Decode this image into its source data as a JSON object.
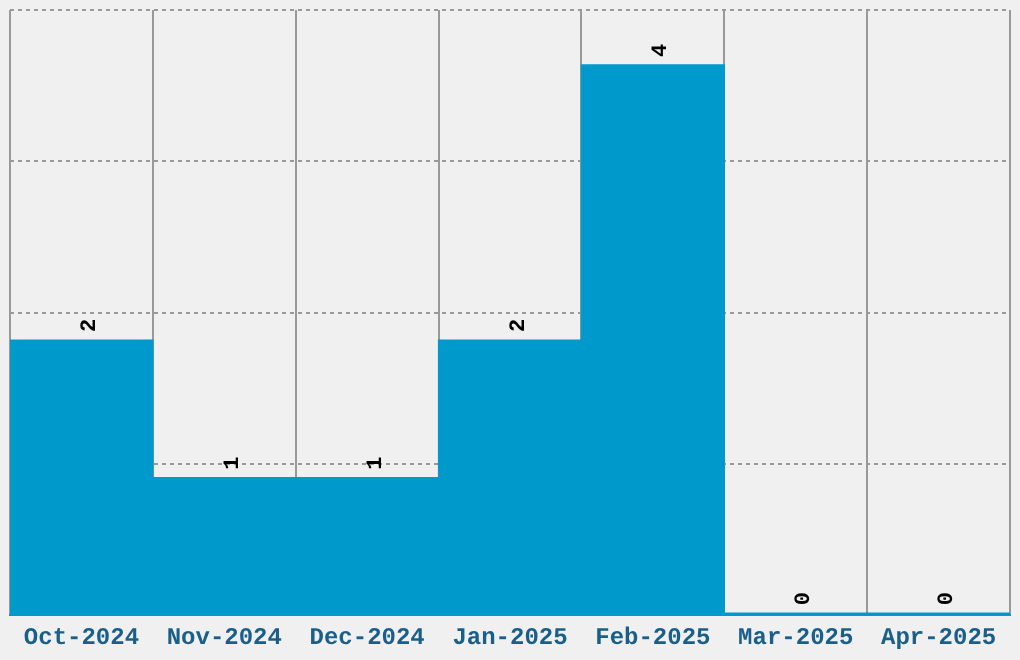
{
  "chart_data": {
    "type": "bar",
    "categories": [
      "Oct-2024",
      "Nov-2024",
      "Dec-2024",
      "Jan-2025",
      "Feb-2025",
      "Mar-2025",
      "Apr-2025"
    ],
    "values": [
      2,
      1,
      1,
      2,
      4,
      0,
      0
    ],
    "color": "#0099cc",
    "ylim": [
      0,
      4.4
    ],
    "yticks": [
      {
        "value": 0,
        "label": null
      },
      {
        "value": 1.1,
        "label": null
      },
      {
        "value": 2.2,
        "label": null
      },
      {
        "value": 3.3,
        "label": null
      },
      {
        "value": 4.4,
        "label": null
      }
    ],
    "grid": true,
    "data_labels": true,
    "tick_labels": "x"
  }
}
